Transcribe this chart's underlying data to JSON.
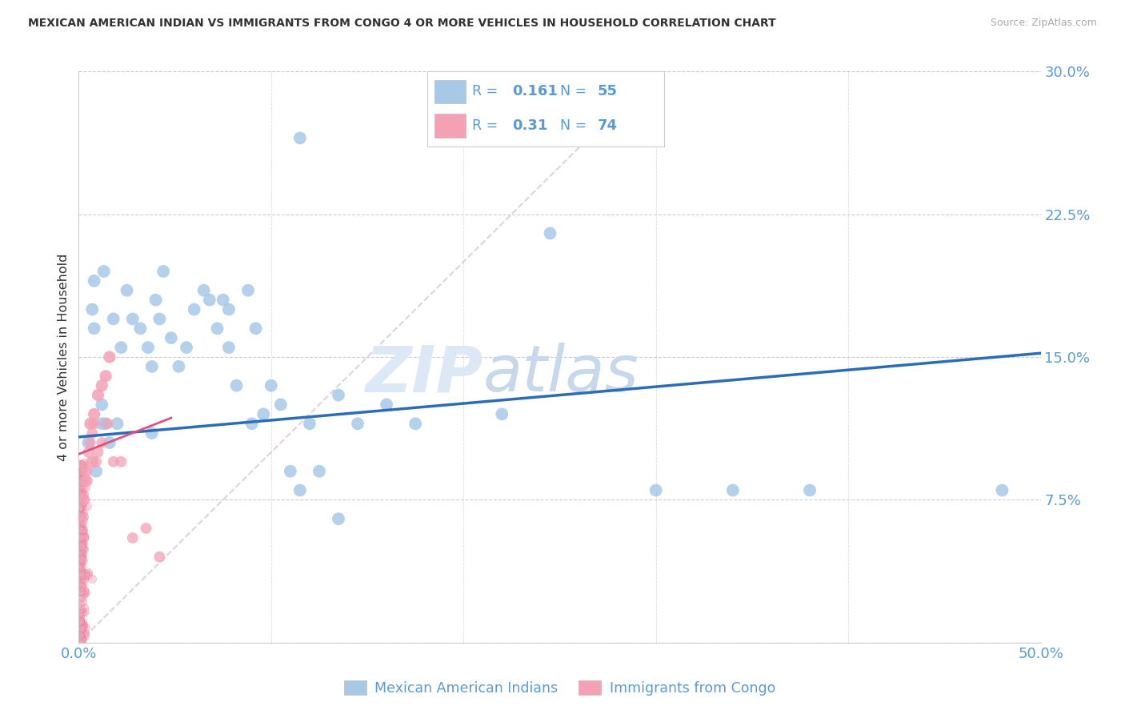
{
  "title": "MEXICAN AMERICAN INDIAN VS IMMIGRANTS FROM CONGO 4 OR MORE VEHICLES IN HOUSEHOLD CORRELATION CHART",
  "source": "Source: ZipAtlas.com",
  "ylabel": "4 or more Vehicles in Household",
  "xlim": [
    0,
    0.5
  ],
  "ylim": [
    0,
    0.3
  ],
  "xticks": [
    0.0,
    0.5
  ],
  "yticks": [
    0.0,
    0.075,
    0.15,
    0.225,
    0.3
  ],
  "ytick_labels": [
    "",
    "7.5%",
    "15.0%",
    "22.5%",
    "30.0%"
  ],
  "xtick_labels": [
    "0.0%",
    "50.0%"
  ],
  "blue_R": 0.161,
  "blue_N": 55,
  "pink_R": 0.31,
  "pink_N": 74,
  "blue_line_x": [
    0.0,
    0.5
  ],
  "blue_line_y": [
    0.108,
    0.152
  ],
  "pink_line_x": [
    0.0,
    0.048
  ],
  "pink_line_y": [
    0.099,
    0.118
  ],
  "blue_color": "#A8C8E8",
  "pink_color": "#F4A0B5",
  "blue_line_color": "#2B6CB8",
  "pink_line_color": "#E05080",
  "diagonal_color": "#DDCCDD",
  "background_color": "#FFFFFF",
  "watermark_zip": "ZIP",
  "watermark_atlas": "atlas",
  "blue_scatter_x": [
    0.005,
    0.007,
    0.009,
    0.012,
    0.014,
    0.016,
    0.018,
    0.022,
    0.025,
    0.028,
    0.032,
    0.036,
    0.04,
    0.042,
    0.044,
    0.048,
    0.052,
    0.056,
    0.06,
    0.065,
    0.068,
    0.072,
    0.075,
    0.078,
    0.082,
    0.088,
    0.092,
    0.096,
    0.1,
    0.105,
    0.11,
    0.115,
    0.12,
    0.125,
    0.135,
    0.145,
    0.16,
    0.175,
    0.19,
    0.22,
    0.245,
    0.3,
    0.34,
    0.38,
    0.48,
    0.008,
    0.013,
    0.038,
    0.078,
    0.115,
    0.008,
    0.012,
    0.02,
    0.038,
    0.09,
    0.135
  ],
  "blue_scatter_y": [
    0.105,
    0.175,
    0.09,
    0.125,
    0.115,
    0.105,
    0.17,
    0.155,
    0.185,
    0.17,
    0.165,
    0.155,
    0.18,
    0.17,
    0.195,
    0.16,
    0.145,
    0.155,
    0.175,
    0.185,
    0.18,
    0.165,
    0.18,
    0.155,
    0.135,
    0.185,
    0.165,
    0.12,
    0.135,
    0.125,
    0.09,
    0.08,
    0.115,
    0.09,
    0.13,
    0.115,
    0.125,
    0.115,
    0.27,
    0.12,
    0.215,
    0.08,
    0.08,
    0.08,
    0.08,
    0.19,
    0.195,
    0.145,
    0.175,
    0.265,
    0.165,
    0.115,
    0.115,
    0.11,
    0.115,
    0.065
  ],
  "pink_scatter_x_large": [
    0.007,
    0.008,
    0.01,
    0.012,
    0.014,
    0.016,
    0.004,
    0.006
  ],
  "pink_scatter_y_large": [
    0.095,
    0.12,
    0.13,
    0.135,
    0.14,
    0.15,
    0.085,
    0.115
  ],
  "pink_scatter_x_med": [
    0.002,
    0.003,
    0.004,
    0.005,
    0.006,
    0.007,
    0.008,
    0.009,
    0.01,
    0.012,
    0.015,
    0.018,
    0.022,
    0.028,
    0.035,
    0.042
  ],
  "pink_scatter_y_med": [
    0.065,
    0.075,
    0.09,
    0.1,
    0.105,
    0.11,
    0.115,
    0.095,
    0.1,
    0.105,
    0.115,
    0.095,
    0.095,
    0.055,
    0.06,
    0.045
  ]
}
